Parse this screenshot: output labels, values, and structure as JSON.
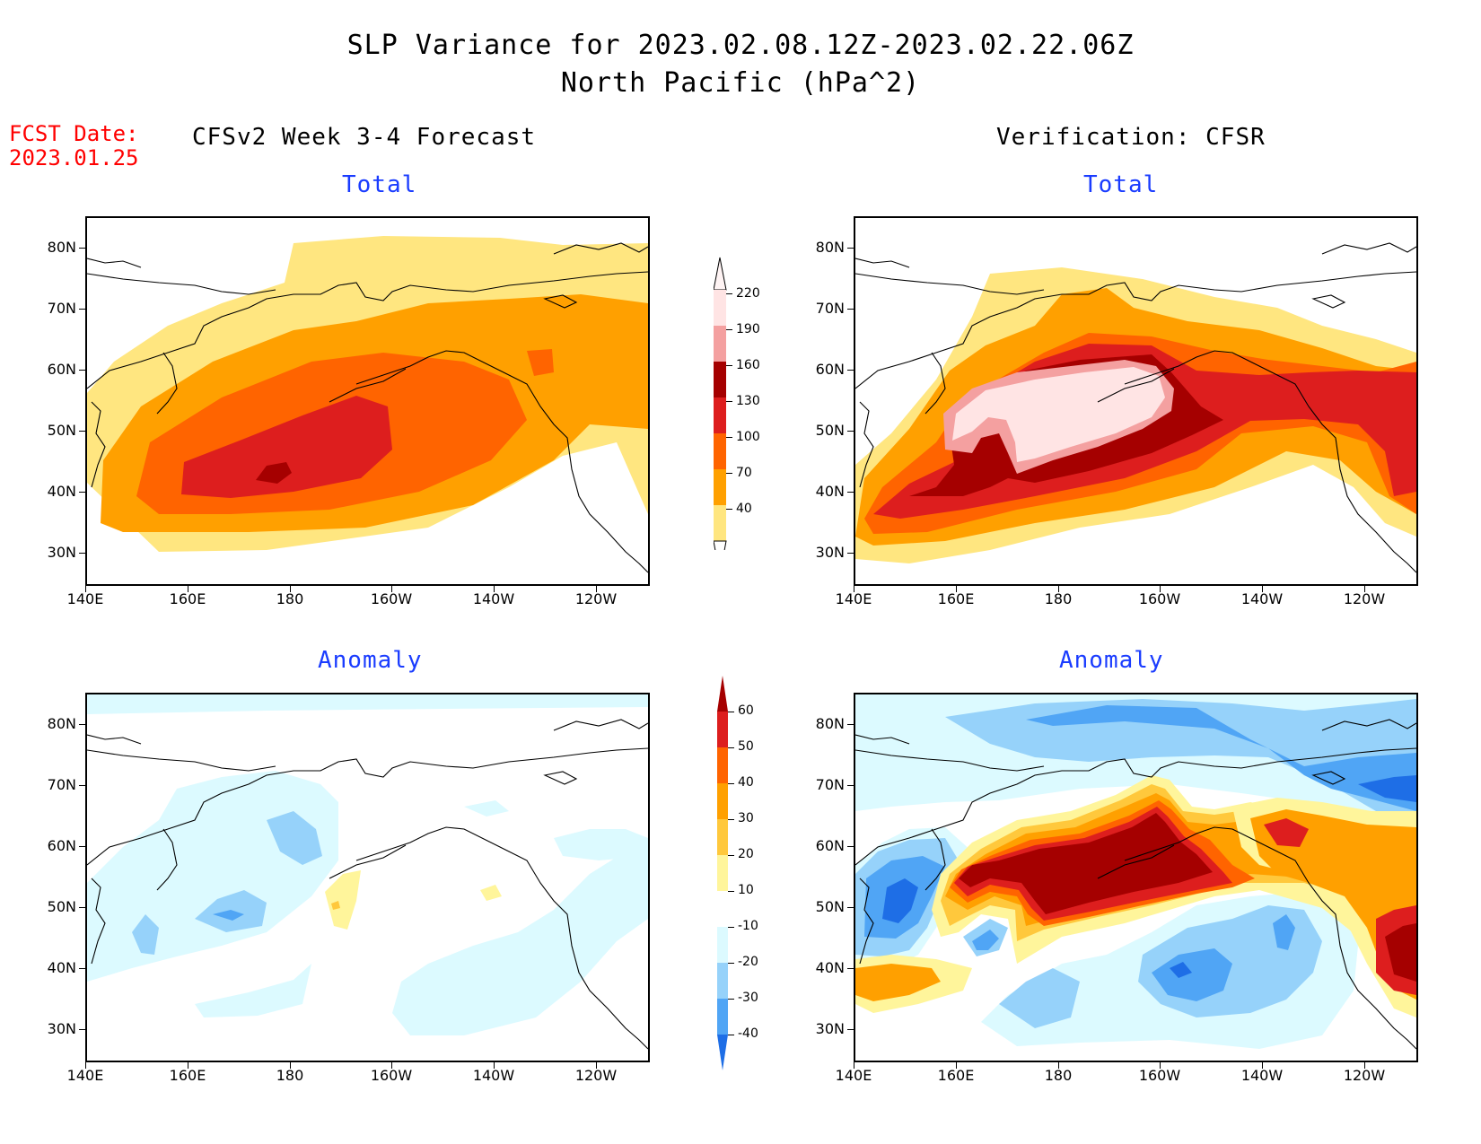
{
  "title": {
    "line1": "SLP Variance for 2023.02.08.12Z-2023.02.22.06Z",
    "line2": "North Pacific (hPa^2)"
  },
  "fcst_date": {
    "label": "FCST Date:",
    "value": "2023.01.25"
  },
  "columns": {
    "left": "CFSv2 Week 3-4 Forecast",
    "right": "Verification: CFSR"
  },
  "panels": {
    "top_left_title": "Total",
    "top_right_title": "Total",
    "bottom_left_title": "Anomaly",
    "bottom_right_title": "Anomaly"
  },
  "axes": {
    "lat_labels": [
      "80N",
      "70N",
      "60N",
      "50N",
      "40N",
      "30N"
    ],
    "lon_labels": [
      "140E",
      "160E",
      "180",
      "160W",
      "140W",
      "120W"
    ]
  },
  "colorbar_total": {
    "labels": [
      "220",
      "190",
      "160",
      "130",
      "100",
      "70",
      "40"
    ],
    "colors": [
      "#ffe4e4",
      "#f4a0a0",
      "#a50000",
      "#dd1e1e",
      "#ff6400",
      "#ffa000",
      "#ffe680"
    ]
  },
  "colorbar_anomaly": {
    "labels": [
      "60",
      "50",
      "40",
      "30",
      "20",
      "10",
      "-10",
      "-20",
      "-30",
      "-40"
    ],
    "colors": [
      "#a50000",
      "#dd1e1e",
      "#ff6400",
      "#ffa000",
      "#ffc83c",
      "#fff59b",
      "#ffffff",
      "#dcfaff",
      "#96d2fa",
      "#50a5f5",
      "#1e6ee6"
    ]
  }
}
